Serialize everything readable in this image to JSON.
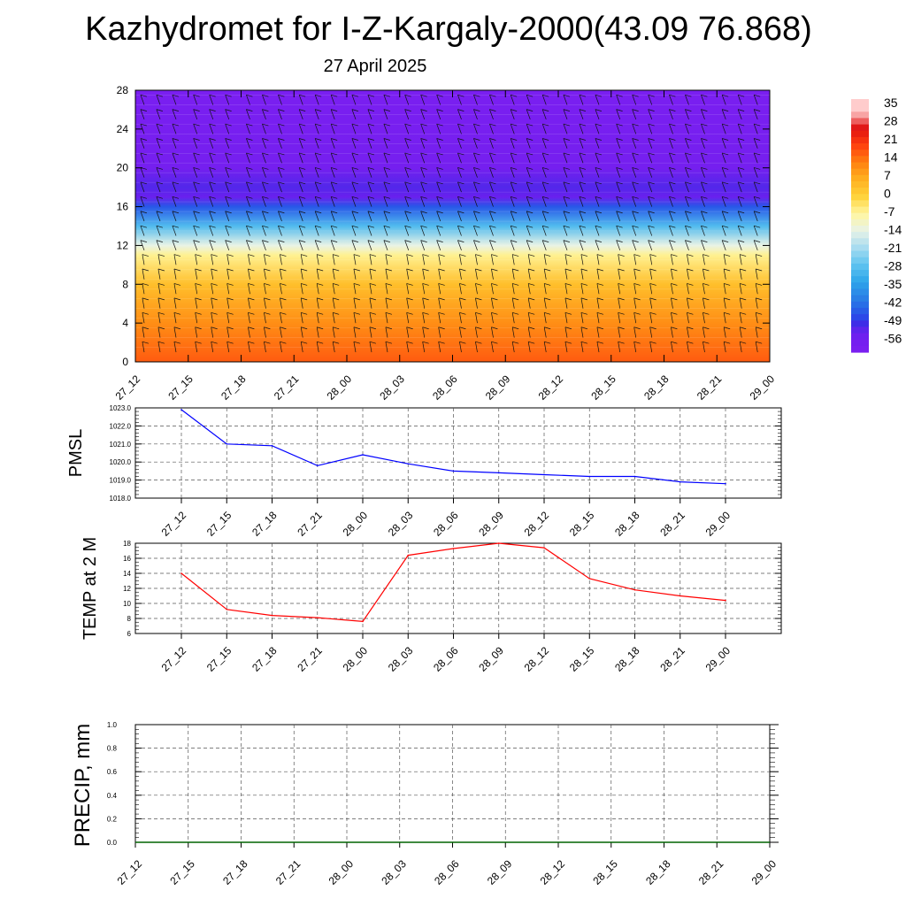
{
  "title": "Kazhydromet for I-Z-Kargaly-2000(43.09 76.868)",
  "subtitle": "27 April 2025",
  "colors": {
    "pmsl_line": "#0000ff",
    "temp_line": "#ff0000",
    "precip_line": "#006400"
  },
  "chart_data": [
    {
      "type": "heatmap",
      "title": "",
      "description_panel": "top",
      "x": [
        "27_12",
        "27_15",
        "27_18",
        "27_21",
        "28_00",
        "28_03",
        "28_06",
        "28_09",
        "28_12",
        "28_15",
        "28_18",
        "28_21",
        "29_00"
      ],
      "yticks": [
        0,
        4,
        8,
        12,
        16,
        20,
        24,
        28
      ],
      "ylim": [
        0,
        28
      ],
      "colorbar": {
        "labels": [
          "35",
          "28",
          "21",
          "14",
          "7",
          "0",
          "-7",
          "-14",
          "-21",
          "-28",
          "-35",
          "-42",
          "-49",
          "-56"
        ],
        "range": [
          -56,
          35
        ]
      },
      "temperature_profile": [
        {
          "level": 0,
          "value": 18
        },
        {
          "level": 4,
          "value": 12
        },
        {
          "level": 8,
          "value": 4
        },
        {
          "level": 11,
          "value": -6
        },
        {
          "level": 12,
          "value": -14
        },
        {
          "level": 14,
          "value": -30
        },
        {
          "level": 16,
          "value": -48
        },
        {
          "level": 17,
          "value": -56
        },
        {
          "level": 18,
          "value": -54
        },
        {
          "level": 20,
          "value": -60
        },
        {
          "level": 28,
          "value": -62
        }
      ],
      "wind_barbs": true
    },
    {
      "type": "line",
      "ylabel": "PMSL",
      "x": [
        "27_12",
        "27_15",
        "27_18",
        "27_21",
        "28_00",
        "28_03",
        "28_06",
        "28_09",
        "28_12",
        "28_15",
        "28_18",
        "28_21",
        "29_00"
      ],
      "yticks": [
        "1018.0",
        "1019.0",
        "1020.0",
        "1021.0",
        "1022.0",
        "1023.0"
      ],
      "ylim": [
        1018,
        1023
      ],
      "series": [
        {
          "values": [
            1022.9,
            1021.0,
            1020.9,
            1019.8,
            1020.4,
            1019.9,
            1019.5,
            1019.4,
            1019.3,
            1019.2,
            1019.2,
            1018.9,
            1018.8
          ]
        }
      ]
    },
    {
      "type": "line",
      "ylabel": "TEMP at 2 M",
      "x": [
        "27_12",
        "27_15",
        "27_18",
        "27_21",
        "28_00",
        "28_03",
        "28_06",
        "28_09",
        "28_12",
        "28_15",
        "28_18",
        "28_21",
        "29_00"
      ],
      "yticks": [
        "6",
        "8",
        "10",
        "12",
        "14",
        "16",
        "18"
      ],
      "ylim": [
        6,
        18
      ],
      "series": [
        {
          "values": [
            14.0,
            9.2,
            8.4,
            8.1,
            7.6,
            16.4,
            17.3,
            18.0,
            17.4,
            13.3,
            11.8,
            11.0,
            10.4
          ]
        }
      ]
    },
    {
      "type": "line",
      "ylabel": "PRECIP, mm",
      "x": [
        "27_12",
        "27_15",
        "27_18",
        "27_21",
        "28_00",
        "28_03",
        "28_06",
        "28_09",
        "28_12",
        "28_15",
        "28_18",
        "28_21",
        "29_00"
      ],
      "yticks": [
        "0.0",
        "0.2",
        "0.4",
        "0.6",
        "0.8",
        "1.0"
      ],
      "ylim": [
        0,
        1
      ],
      "series": [
        {
          "values": [
            0,
            0,
            0,
            0,
            0,
            0,
            0,
            0,
            0,
            0,
            0,
            0,
            0
          ]
        }
      ]
    }
  ]
}
